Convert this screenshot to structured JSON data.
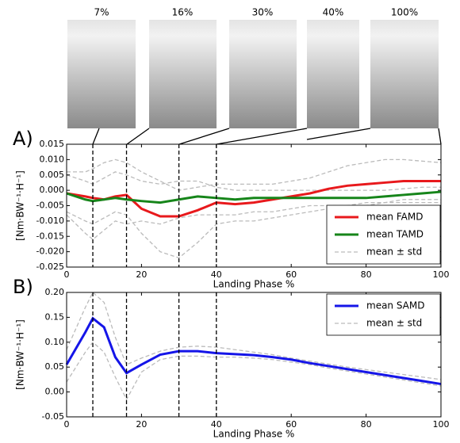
{
  "phase_images": [
    "7%",
    "16%",
    "30%",
    "40%",
    "100%"
  ],
  "chart_data": [
    {
      "type": "line",
      "panel_label": "A)",
      "xlabel": "Landing Phase %",
      "ylabel": "[Nm·BW⁻¹·H⁻¹]",
      "xlim": [
        0,
        100
      ],
      "xticks": [
        0,
        20,
        40,
        60,
        80,
        100
      ],
      "ylim": [
        -0.025,
        0.015
      ],
      "yticks": [
        -0.025,
        {
          "value": -0.02,
          "label": "-0.020"
        },
        -0.015,
        {
          "value": -0.01,
          "label": "-0.010"
        },
        -0.005,
        {
          "value": 0,
          "label": "0.000"
        },
        0.005,
        {
          "value": 0.01,
          "label": "0.010"
        },
        0.015
      ],
      "vlines": [
        7,
        16,
        30,
        40
      ],
      "legend": "lower right",
      "x": [
        0,
        5,
        7,
        10,
        13,
        16,
        20,
        25,
        30,
        35,
        40,
        45,
        50,
        55,
        60,
        65,
        70,
        75,
        80,
        85,
        90,
        95,
        100
      ],
      "series": [
        {
          "name": "mean ± std",
          "color": "#bbbbbb",
          "dashed": true,
          "values": [
            0.006,
            0.006,
            0.007,
            0.009,
            0.01,
            0.009,
            0.006,
            0.003,
            0.0,
            0.001,
            0.002,
            0.002,
            0.002,
            0.002,
            0.003,
            0.004,
            0.006,
            0.008,
            0.009,
            0.01,
            0.01,
            0.0095,
            0.009
          ]
        },
        {
          "color": "#bbbbbb",
          "dashed": true,
          "values": [
            0.005,
            0.003,
            0.002,
            0.004,
            0.006,
            0.005,
            0.003,
            0.002,
            0.003,
            0.003,
            0.001,
            0.0,
            0.0,
            0.0,
            0.0,
            0.0,
            0.0,
            0.0,
            0.0,
            0.0,
            0.0005,
            0.001,
            0.001
          ]
        },
        {
          "color": "#bbbbbb",
          "dashed": true,
          "values": [
            -0.007,
            -0.01,
            -0.011,
            -0.009,
            -0.007,
            -0.008,
            -0.014,
            -0.02,
            -0.022,
            -0.017,
            -0.011,
            -0.01,
            -0.01,
            -0.009,
            -0.008,
            -0.007,
            -0.006,
            -0.005,
            -0.004,
            -0.004,
            -0.003,
            -0.003,
            -0.003
          ]
        },
        {
          "color": "#bbbbbb",
          "dashed": true,
          "values": [
            -0.008,
            -0.014,
            -0.016,
            -0.013,
            -0.01,
            -0.011,
            -0.01,
            -0.011,
            -0.009,
            -0.008,
            -0.008,
            -0.008,
            -0.007,
            -0.007,
            -0.006,
            -0.005,
            -0.005,
            -0.005,
            -0.005,
            -0.004,
            -0.004,
            -0.004,
            -0.004
          ]
        },
        {
          "name": "mean FAMD",
          "color": "#e8191c",
          "values": [
            -0.001,
            -0.002,
            -0.0025,
            -0.003,
            -0.002,
            -0.0015,
            -0.006,
            -0.0085,
            -0.0085,
            -0.0065,
            -0.004,
            -0.0045,
            -0.004,
            -0.003,
            -0.002,
            -0.001,
            0.0005,
            0.0015,
            0.002,
            0.0025,
            0.003,
            0.003,
            0.003
          ]
        },
        {
          "name": "mean TAMD",
          "color": "#16851a",
          "values": [
            -0.001,
            -0.003,
            -0.0035,
            -0.003,
            -0.0025,
            -0.003,
            -0.0035,
            -0.004,
            -0.003,
            -0.002,
            -0.0025,
            -0.003,
            -0.0025,
            -0.0025,
            -0.0025,
            -0.0025,
            -0.0025,
            -0.0025,
            -0.0025,
            -0.002,
            -0.0015,
            -0.001,
            -0.0005
          ]
        }
      ],
      "legend_order": [
        4,
        5,
        0
      ]
    },
    {
      "type": "line",
      "panel_label": "B)",
      "xlabel": "Landing Phase %",
      "ylabel": "[Nm·BW⁻¹·H⁻¹]",
      "xlim": [
        0,
        100
      ],
      "xticks": [
        0,
        20,
        40,
        60,
        80,
        100
      ],
      "ylim": [
        -0.05,
        0.2
      ],
      "yticks": [
        -0.05,
        {
          "value": 0,
          "label": "0.00"
        },
        0.05,
        {
          "value": 0.1,
          "label": "0.10"
        },
        0.15,
        {
          "value": 0.2,
          "label": "0.20"
        }
      ],
      "vlines": [
        7,
        16,
        30,
        40
      ],
      "legend": "upper right",
      "x": [
        0,
        5,
        7,
        10,
        13,
        16,
        20,
        25,
        30,
        35,
        40,
        45,
        50,
        55,
        60,
        65,
        70,
        75,
        80,
        85,
        90,
        95,
        100
      ],
      "series": [
        {
          "name": "mean ± std",
          "color": "#bbbbbb",
          "dashed": true,
          "values": [
            0.085,
            0.17,
            0.2,
            0.18,
            0.11,
            0.055,
            0.068,
            0.082,
            0.09,
            0.092,
            0.09,
            0.085,
            0.08,
            0.075,
            0.068,
            0.062,
            0.056,
            0.05,
            0.045,
            0.04,
            0.035,
            0.03,
            0.025
          ]
        },
        {
          "color": "#bbbbbb",
          "dashed": true,
          "values": [
            0.02,
            0.08,
            0.1,
            0.08,
            0.03,
            -0.015,
            0.04,
            0.065,
            0.072,
            0.072,
            0.07,
            0.07,
            0.068,
            0.065,
            0.06,
            0.055,
            0.048,
            0.042,
            0.036,
            0.03,
            0.024,
            0.018,
            0.012
          ]
        },
        {
          "name": "mean SAMD",
          "color": "#1515e8",
          "values": [
            0.055,
            0.12,
            0.148,
            0.13,
            0.07,
            0.038,
            0.055,
            0.075,
            0.082,
            0.082,
            0.078,
            0.076,
            0.074,
            0.07,
            0.065,
            0.058,
            0.052,
            0.046,
            0.04,
            0.034,
            0.028,
            0.022,
            0.016
          ]
        }
      ],
      "legend_order": [
        2,
        0
      ]
    }
  ]
}
